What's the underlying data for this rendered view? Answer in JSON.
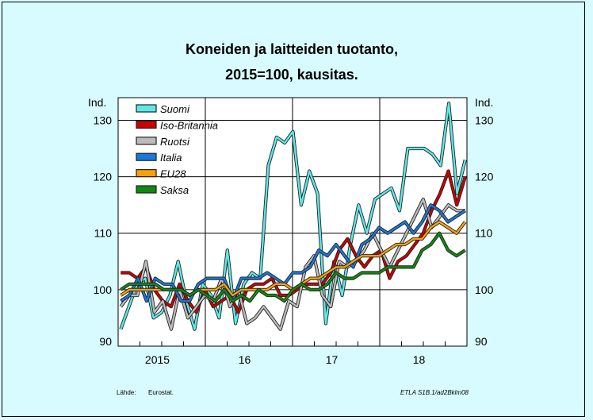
{
  "chart_data": {
    "type": "line",
    "title": "Koneiden ja laitteiden tuotanto,",
    "subtitle": "2015=100, kausitas.",
    "ylabel_left": "Ind.",
    "ylabel_right": "Ind.",
    "ylim": [
      90,
      134
    ],
    "yticks": [
      90,
      100,
      110,
      120,
      130
    ],
    "xlim": [
      0,
      40
    ],
    "xtick_labels": [
      {
        "label": "2015",
        "x": 4.5
      },
      {
        "label": "16",
        "x": 14.5
      },
      {
        "label": "17",
        "x": 24.5
      },
      {
        "label": "18",
        "x": 34.5
      }
    ],
    "year_boundaries": [
      10,
      20,
      30
    ],
    "month_ticks_per_year": 12,
    "grid": true,
    "legend_position": "top-left",
    "source_label": "Lähde:",
    "source_value": "Eurostat.",
    "credit": "ETLA S1B.1/ad2Bklm08",
    "series": [
      {
        "name": "Suomi",
        "color": "#5ee8e8",
        "values": [
          93,
          97,
          101,
          102,
          95,
          96,
          99,
          105,
          98,
          93,
          101,
          99,
          95,
          107,
          94,
          101,
          103,
          102,
          122,
          127,
          126,
          128,
          115,
          121,
          117,
          94,
          105,
          99,
          108,
          115,
          110,
          116,
          117,
          118,
          114,
          125,
          125,
          125,
          124,
          122,
          133,
          117,
          123
        ]
      },
      {
        "name": "Iso-Britannia",
        "color": "#cc0000",
        "values": [
          103,
          103,
          102,
          104,
          100,
          98,
          97,
          101,
          98,
          96,
          100,
          97,
          98,
          99,
          96,
          100,
          101,
          101,
          102,
          99,
          99,
          100,
          101,
          101,
          101,
          103,
          107,
          109,
          106,
          104,
          106,
          107,
          102,
          105,
          106,
          108,
          110,
          114,
          117,
          121,
          115,
          120
        ]
      },
      {
        "name": "Ruotsi",
        "color": "#bcbcbc",
        "values": [
          97,
          99,
          99,
          105,
          96,
          98,
          93,
          100,
          95,
          97,
          99,
          98,
          102,
          97,
          100,
          94,
          95,
          97,
          95,
          93,
          98,
          97,
          104,
          106,
          99,
          97,
          105,
          104,
          105,
          107,
          110,
          107,
          104,
          107,
          110,
          113,
          116,
          111,
          113,
          115,
          114,
          114
        ]
      },
      {
        "name": "Italia",
        "color": "#1a78d8",
        "values": [
          98,
          99,
          102,
          98,
          102,
          101,
          101,
          98,
          98,
          101,
          102,
          102,
          102,
          98,
          102,
          102,
          102,
          103,
          102,
          101,
          103,
          103,
          104,
          107,
          106,
          108,
          106,
          104,
          108,
          109,
          111,
          110,
          111,
          112,
          110,
          112,
          115,
          114,
          112,
          113,
          114
        ]
      },
      {
        "name": "EU28",
        "color": "#f4a10c",
        "values": [
          99,
          100,
          100,
          100,
          100,
          100,
          100,
          100,
          99,
          100,
          100,
          100,
          101,
          99,
          100,
          100,
          100,
          100,
          101,
          101,
          100,
          101,
          102,
          102,
          103,
          104,
          104,
          105,
          106,
          106,
          106,
          107,
          108,
          108,
          109,
          109,
          111,
          112,
          111,
          110,
          112
        ]
      },
      {
        "name": "Saksa",
        "color": "#118811",
        "values": [
          100,
          101,
          101,
          101,
          101,
          100,
          100,
          100,
          99,
          100,
          99,
          98,
          100,
          98,
          99,
          98,
          100,
          99,
          99,
          98,
          100,
          101,
          100,
          100,
          101,
          103,
          102,
          102,
          103,
          103,
          103,
          104,
          104,
          104,
          104,
          107,
          108,
          110,
          107,
          106,
          107
        ]
      }
    ]
  }
}
